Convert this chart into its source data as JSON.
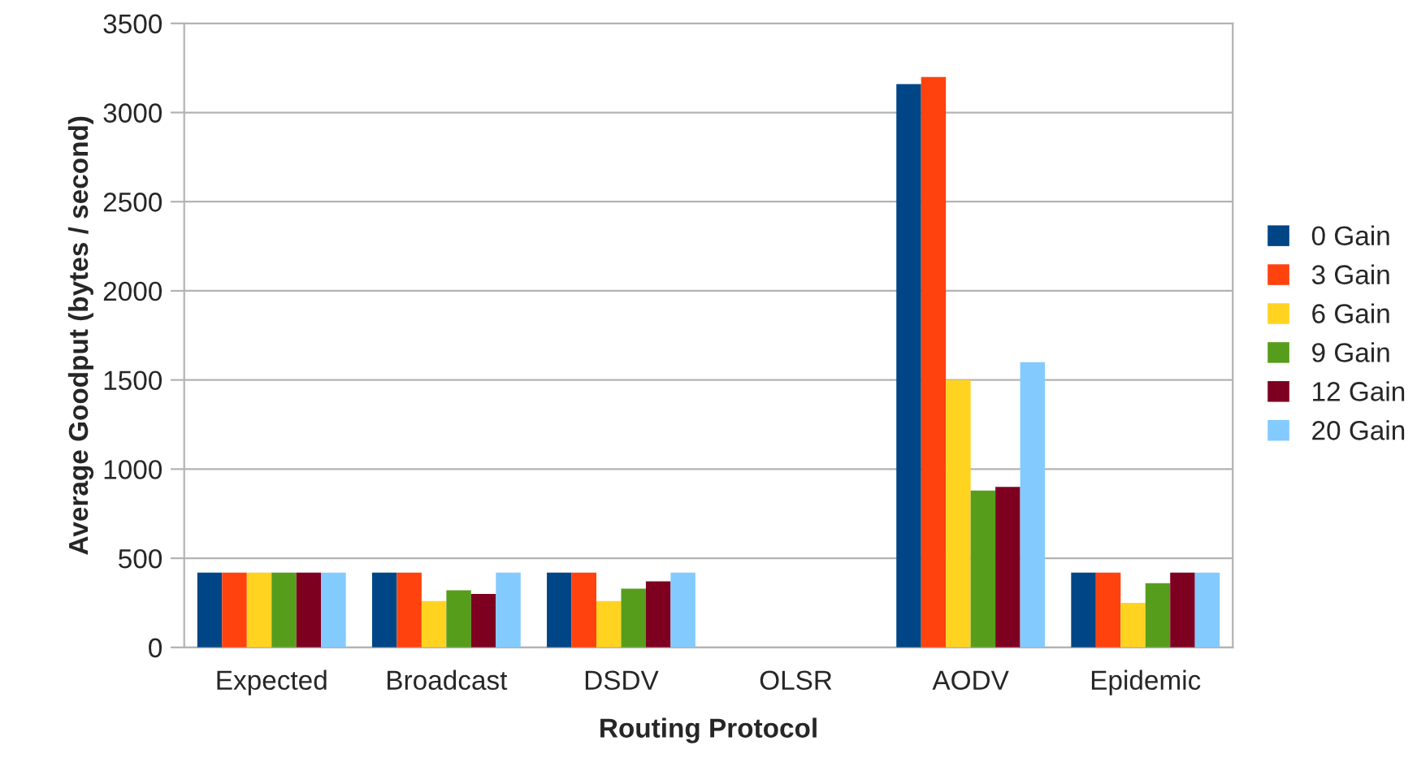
{
  "chart_data": {
    "type": "bar",
    "xlabel": "Routing Protocol",
    "ylabel": "Average Goodput (bytes / second)",
    "categories": [
      "Expected",
      "Broadcast",
      "DSDV",
      "OLSR",
      "AODV",
      "Epidemic"
    ],
    "series": [
      {
        "name": "0 Gain",
        "color": "#004586",
        "values": [
          420,
          420,
          420,
          null,
          3160,
          420
        ]
      },
      {
        "name": "3 Gain",
        "color": "#ff420e",
        "values": [
          420,
          420,
          420,
          null,
          3200,
          420
        ]
      },
      {
        "name": "6 Gain",
        "color": "#ffd320",
        "values": [
          420,
          260,
          260,
          null,
          1500,
          250
        ]
      },
      {
        "name": "9 Gain",
        "color": "#579d1c",
        "values": [
          420,
          320,
          330,
          null,
          880,
          360
        ]
      },
      {
        "name": "12 Gain",
        "color": "#7e0021",
        "values": [
          420,
          300,
          370,
          null,
          900,
          420
        ]
      },
      {
        "name": "20 Gain",
        "color": "#83caff",
        "values": [
          420,
          420,
          420,
          null,
          1600,
          420
        ]
      }
    ],
    "ylim": [
      0,
      3500
    ],
    "yticks": [
      0,
      500,
      1000,
      1500,
      2000,
      2500,
      3000,
      3500
    ],
    "grid": "y",
    "legend": "right"
  }
}
